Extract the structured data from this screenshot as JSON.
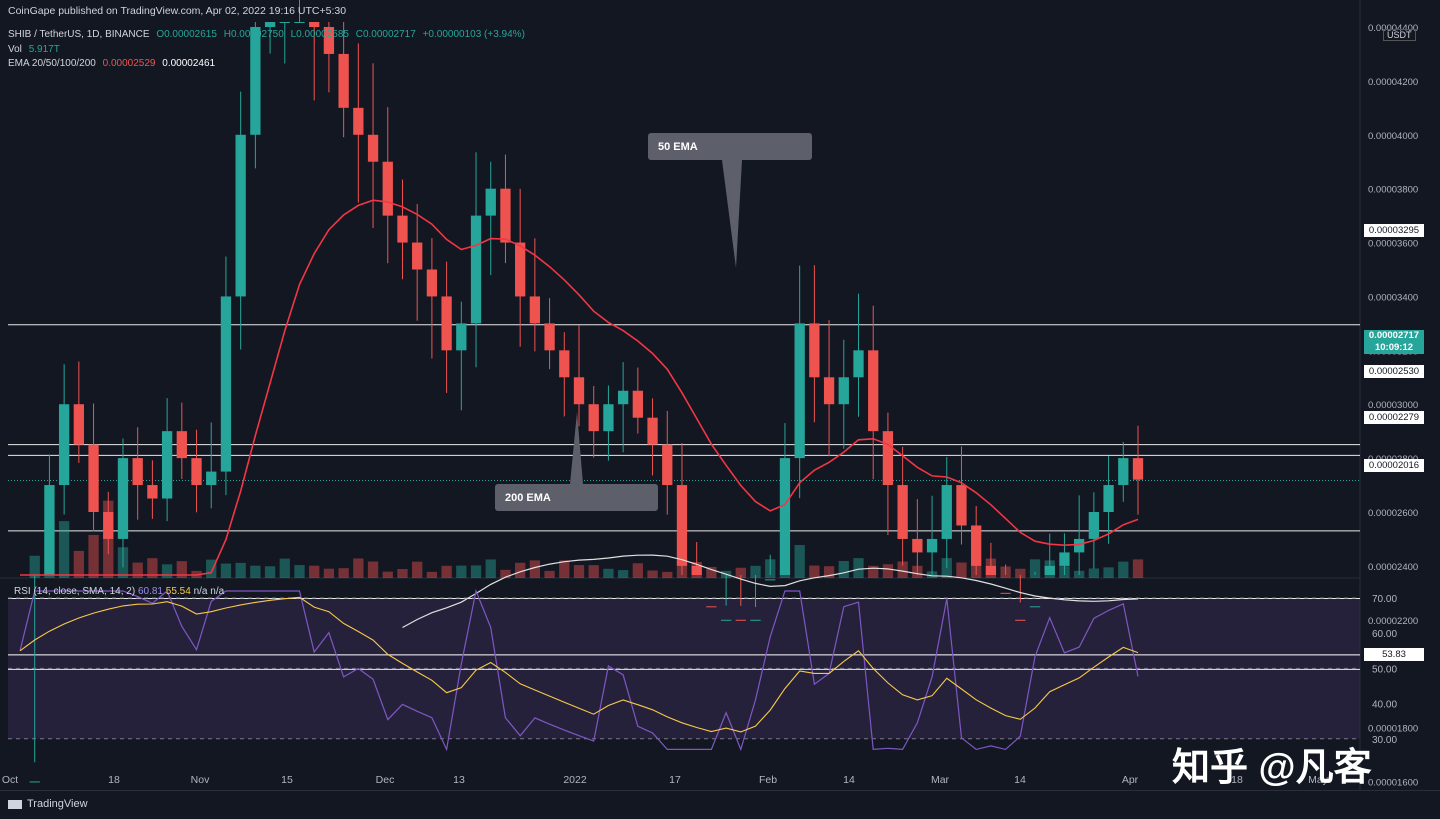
{
  "header": {
    "publisher": "CoinGape published on TradingView.com, Apr 02, 2022 19:16 UTC+5:30",
    "symbol": "SHIB / TetherUS, 1D, BINANCE",
    "ohlc": {
      "open": "O0.00002615",
      "high": "H0.00002750",
      "low": "L0.00002585",
      "close": "C0.00002717",
      "change": "+0.00000103 (+3.94%)"
    },
    "vol_label": "Vol",
    "vol_value": "5.917T",
    "ema_label": "EMA 20/50/100/200",
    "ema_val1": "0.00002529",
    "ema_val2": "0.00002461"
  },
  "price_axis": {
    "currency": "USDT",
    "labels": [
      "0.00004400",
      "0.00004200",
      "0.00004000",
      "0.00003800",
      "0.00003600",
      "0.00003400",
      "0.00003200",
      "0.00003000",
      "0.00002800",
      "0.00002600",
      "0.00002400",
      "0.00002200",
      "0.00001800",
      "0.00001600"
    ],
    "level_badges": [
      "0.00003295",
      "0.00002530",
      "0.00002279",
      "0.00002016"
    ],
    "current_price": "0.00002717",
    "countdown": "10:09:12"
  },
  "annotations": {
    "ema50": "50 EMA",
    "ema200": "200 EMA"
  },
  "rsi": {
    "label": "RSI (14, close, SMA, 14, 2)",
    "val": "60.81",
    "sma": "55.54",
    "na1": "n/a",
    "na2": "n/a",
    "axis_labels": [
      "70.00",
      "60.00",
      "50.00",
      "40.00",
      "30.00"
    ],
    "level_badge": "53.83"
  },
  "time_axis": [
    "Oct",
    "18",
    "Nov",
    "15",
    "Dec",
    "13",
    "2022",
    "17",
    "Feb",
    "14",
    "Mar",
    "14",
    "Apr",
    "18",
    "May"
  ],
  "footer": {
    "brand": "TradingView"
  },
  "watermark": "知乎 @凡客",
  "colors": {
    "background": "#131722",
    "up": "#26a69a",
    "down": "#ef5350",
    "ema50": "#f23645",
    "ema200": "#e0e0e0",
    "rsi_line": "#7e57c2",
    "rsi_sma": "#f7c948"
  },
  "chart_data": {
    "type": "candlestick",
    "price_levels": [
      3.295e-05,
      2.85e-05,
      2.81e-05,
      2.53e-05,
      2.279e-05,
      2.016e-05
    ],
    "current_price": 2.717e-05,
    "close_series_approx": [
      9.5e-06,
      1.6e-05,
      2.7e-05,
      3e-05,
      2.85e-05,
      2.6e-05,
      2.5e-05,
      2.8e-05,
      2.7e-05,
      2.65e-05,
      2.9e-05,
      2.8e-05,
      2.7e-05,
      2.75e-05,
      3.4e-05,
      4e-05,
      4.4e-05,
      4.5e-05,
      4.7e-05,
      4.7e-05,
      4.4e-05,
      4.3e-05,
      4.1e-05,
      4e-05,
      3.9e-05,
      3.7e-05,
      3.6e-05,
      3.5e-05,
      3.4e-05,
      3.2e-05,
      3.3e-05,
      3.7e-05,
      3.8e-05,
      3.6e-05,
      3.4e-05,
      3.3e-05,
      3.2e-05,
      3.1e-05,
      3e-05,
      2.9e-05,
      3e-05,
      3.05e-05,
      2.95e-05,
      2.85e-05,
      2.7e-05,
      2.4e-05,
      2.25e-05,
      2.15e-05,
      2.2e-05,
      2.15e-05,
      2.2e-05,
      2.35e-05,
      2.8e-05,
      3.3e-05,
      3.1e-05,
      3e-05,
      3.1e-05,
      3.2e-05,
      2.9e-05,
      2.7e-05,
      2.5e-05,
      2.45e-05,
      2.5e-05,
      2.7e-05,
      2.55e-05,
      2.4e-05,
      2.3e-05,
      2.2e-05,
      2.15e-05,
      2.25e-05,
      2.4e-05,
      2.45e-05,
      2.5e-05,
      2.6e-05,
      2.7e-05,
      2.8e-05,
      2.72e-05
    ]
  }
}
